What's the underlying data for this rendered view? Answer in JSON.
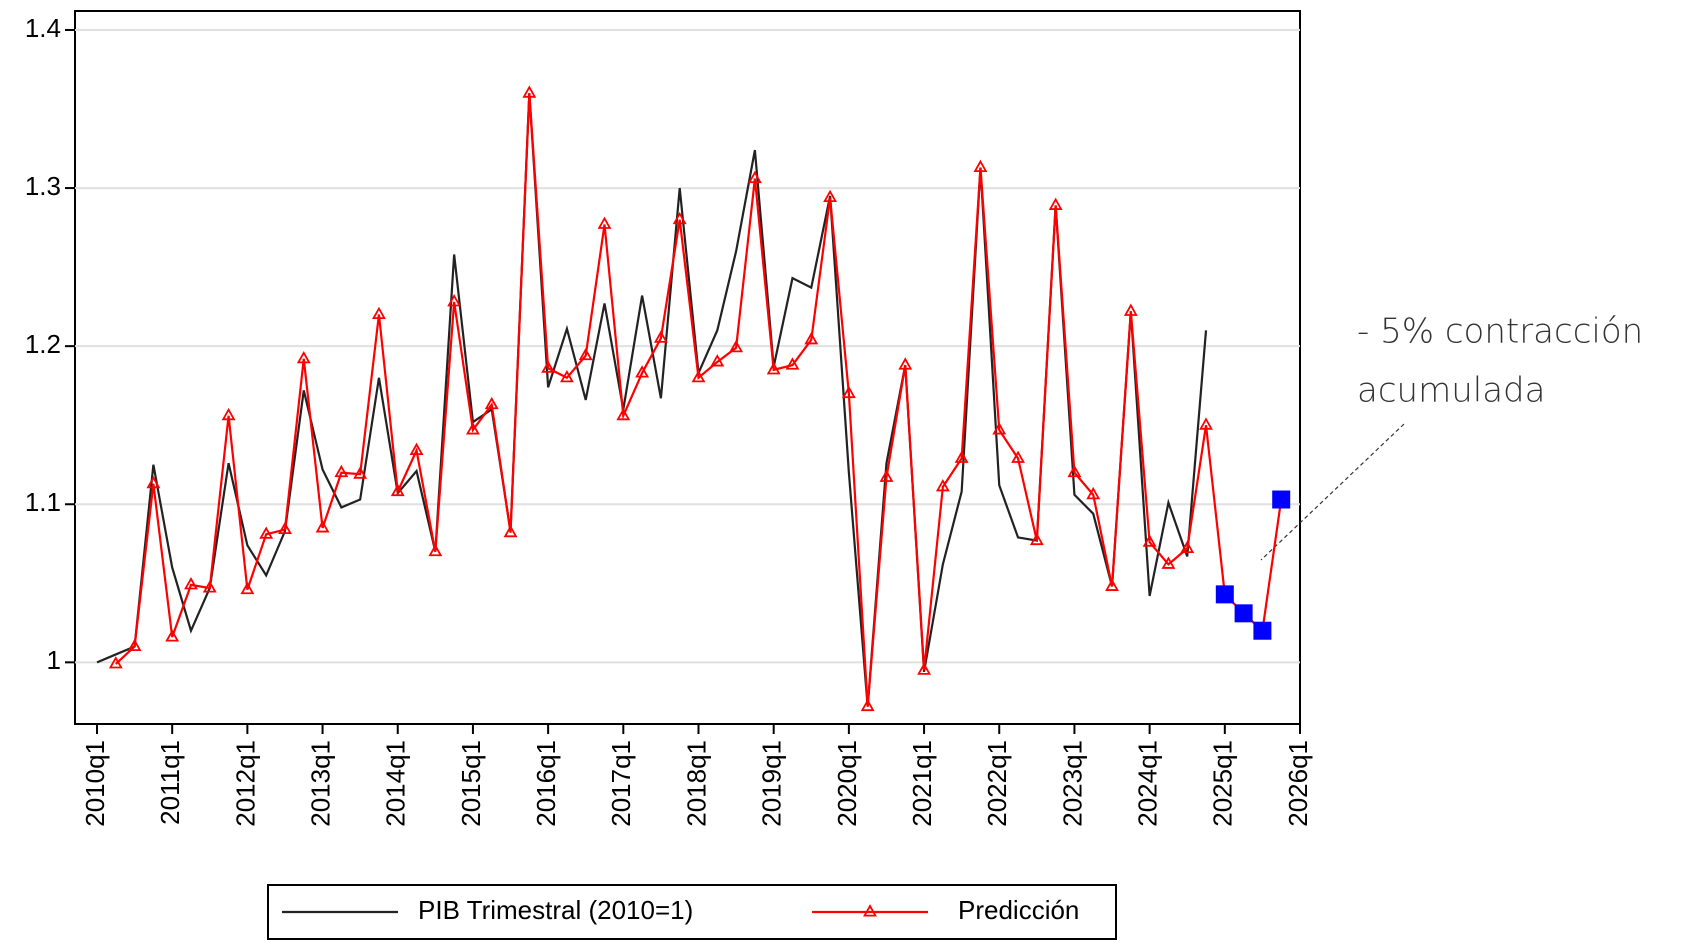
{
  "chart_data": {
    "type": "line",
    "categories": [
      "2010q1",
      null,
      null,
      null,
      "2011q1",
      null,
      null,
      null,
      "2012q1",
      null,
      null,
      null,
      "2013q1",
      null,
      null,
      null,
      "2014q1",
      null,
      null,
      null,
      "2015q1",
      null,
      null,
      null,
      "2016q1",
      null,
      null,
      null,
      "2017q1",
      null,
      null,
      null,
      "2018q1",
      null,
      null,
      null,
      "2019q1",
      null,
      null,
      null,
      "2020q1",
      null,
      null,
      null,
      "2021q1",
      null,
      null,
      null,
      "2022q1",
      null,
      null,
      null,
      "2023q1",
      null,
      null,
      null,
      "2024q1",
      null,
      null,
      null,
      "2025q1",
      null,
      null,
      null,
      "2026q1"
    ],
    "series": [
      {
        "name": "PIB Trimestral (2010=1)",
        "color": "#222222",
        "marker": "none",
        "values": [
          1.0,
          1.005,
          1.01,
          1.125,
          1.06,
          1.02,
          1.047,
          1.126,
          1.074,
          1.055,
          1.083,
          1.172,
          1.122,
          1.098,
          1.103,
          1.18,
          1.107,
          1.121,
          1.07,
          1.258,
          1.152,
          1.16,
          1.083,
          1.36,
          1.174,
          1.211,
          1.166,
          1.227,
          1.16,
          1.232,
          1.167,
          1.3,
          1.183,
          1.21,
          1.26,
          1.324,
          1.187,
          1.243,
          1.237,
          1.295,
          1.12,
          0.972,
          1.126,
          1.188,
          0.994,
          1.062,
          1.108,
          1.313,
          1.112,
          1.079,
          1.077,
          1.289,
          1.106,
          1.094,
          1.048,
          1.222,
          1.042,
          1.101,
          1.067,
          1.21,
          null,
          null,
          null,
          null,
          null
        ]
      },
      {
        "name": "Predicción",
        "color": "#ff0000",
        "marker": "triangle",
        "highlight_from": 60,
        "highlight_color": "#0000ff",
        "values": [
          null,
          0.999,
          1.01,
          1.113,
          1.016,
          1.049,
          1.047,
          1.156,
          1.046,
          1.081,
          1.084,
          1.192,
          1.085,
          1.12,
          1.119,
          1.22,
          1.108,
          1.134,
          1.07,
          1.228,
          1.147,
          1.163,
          1.082,
          1.36,
          1.186,
          1.18,
          1.194,
          1.277,
          1.156,
          1.183,
          1.205,
          1.28,
          1.18,
          1.19,
          1.199,
          1.306,
          1.185,
          1.188,
          1.204,
          1.294,
          1.17,
          0.972,
          1.117,
          1.188,
          0.995,
          1.111,
          1.129,
          1.313,
          1.147,
          1.129,
          1.077,
          1.289,
          1.12,
          1.106,
          1.048,
          1.222,
          1.076,
          1.062,
          1.072,
          1.15,
          1.043,
          1.031,
          1.02,
          1.103,
          null
        ]
      }
    ],
    "ylim": [
      0.961,
      1.412
    ],
    "yticks": [
      1,
      1.1,
      1.2,
      1.3,
      1.4
    ],
    "grid": true,
    "annotation": [
      "- 5% contracción",
      "acumulada"
    ]
  }
}
